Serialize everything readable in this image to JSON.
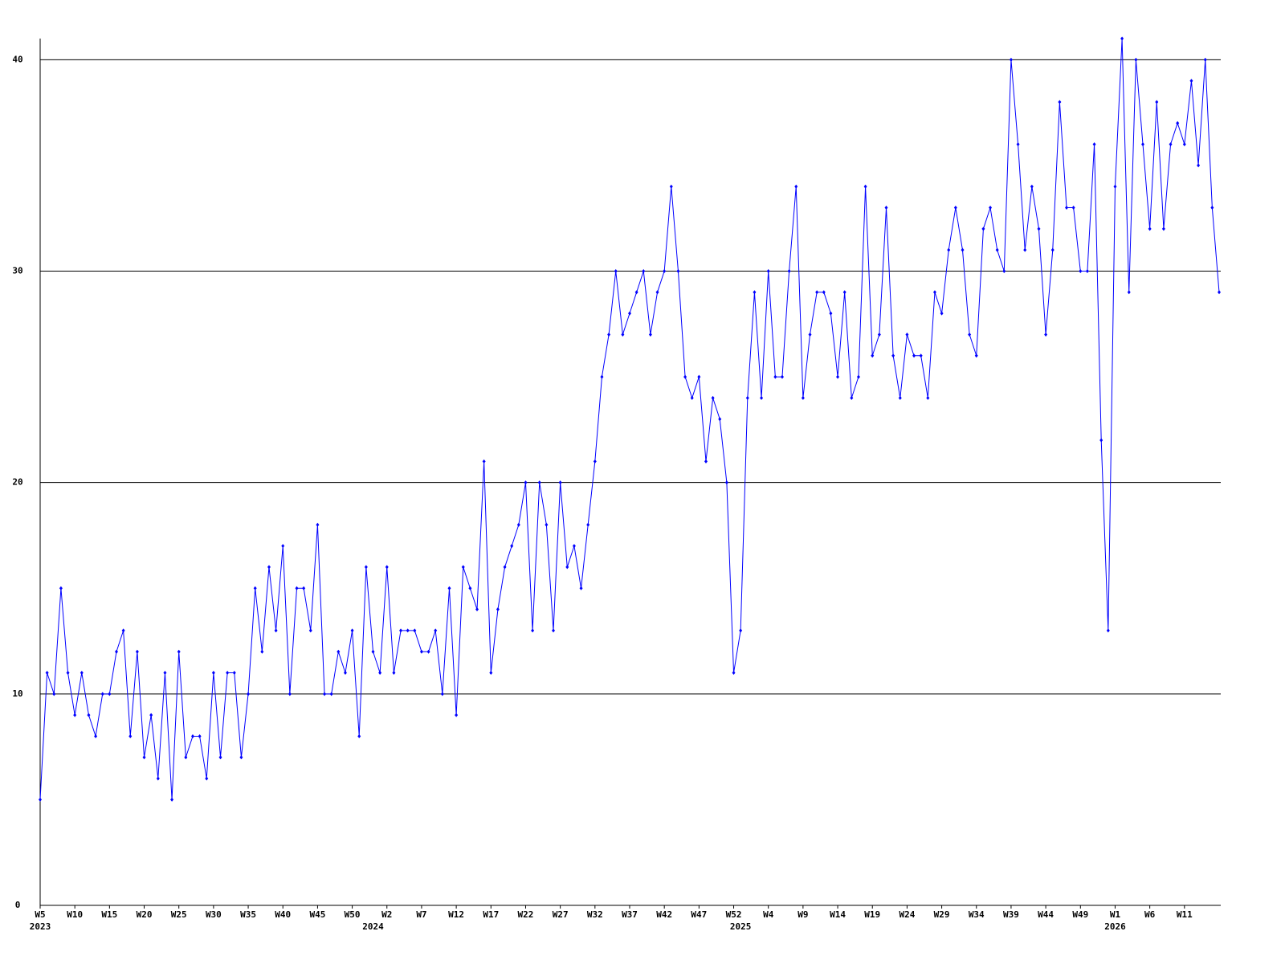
{
  "chart_data": {
    "type": "line",
    "categories": [
      "W5",
      null,
      null,
      null,
      null,
      "W10",
      null,
      null,
      null,
      null,
      "W15",
      null,
      null,
      null,
      null,
      "W20",
      null,
      null,
      null,
      null,
      "W25",
      null,
      null,
      null,
      null,
      "W30",
      null,
      null,
      null,
      null,
      "W35",
      null,
      null,
      null,
      null,
      "W40",
      null,
      null,
      null,
      null,
      "W45",
      null,
      null,
      null,
      null,
      "W50",
      null,
      null,
      null,
      null,
      "W2",
      null,
      null,
      null,
      null,
      "W7",
      null,
      null,
      null,
      null,
      "W12",
      null,
      null,
      null,
      null,
      "W17",
      null,
      null,
      null,
      null,
      "W22",
      null,
      null,
      null,
      null,
      "W27",
      null,
      null,
      null,
      null,
      "W32",
      null,
      null,
      null,
      null,
      "W37",
      null,
      null,
      null,
      null,
      "W42",
      null,
      null,
      null,
      null,
      "W47",
      null,
      null,
      null,
      null,
      "W52",
      null,
      null,
      null,
      null,
      "W4",
      null,
      null,
      null,
      null,
      "W9",
      null,
      null,
      null,
      null,
      "W14",
      null,
      null,
      null,
      null,
      "W19",
      null,
      null,
      null,
      null,
      "W24",
      null,
      null,
      null,
      null,
      "W29",
      null,
      null,
      null,
      null,
      "W34",
      null,
      null,
      null,
      null,
      "W39",
      null,
      null,
      null,
      null,
      "W44",
      null,
      null,
      null,
      null,
      "W49",
      null,
      null,
      null,
      null,
      "W1",
      null,
      null,
      null,
      null,
      "W6",
      null,
      null,
      null,
      null,
      "W11",
      null,
      null,
      null,
      null,
      null
    ],
    "category_years": [
      "2023",
      null,
      null,
      null,
      null,
      null,
      null,
      null,
      null,
      null,
      null,
      null,
      null,
      null,
      null,
      null,
      null,
      null,
      null,
      null,
      null,
      null,
      null,
      null,
      null,
      null,
      null,
      null,
      null,
      null,
      null,
      null,
      null,
      null,
      null,
      null,
      null,
      null,
      null,
      null,
      null,
      null,
      null,
      null,
      null,
      null,
      null,
      null,
      "2024",
      null,
      null,
      null,
      null,
      null,
      null,
      null,
      null,
      null,
      null,
      null,
      null,
      null,
      null,
      null,
      null,
      null,
      null,
      null,
      null,
      null,
      null,
      null,
      null,
      null,
      null,
      null,
      null,
      null,
      null,
      null,
      null,
      null,
      null,
      null,
      null,
      null,
      null,
      null,
      null,
      null,
      null,
      null,
      null,
      null,
      null,
      null,
      null,
      null,
      null,
      null,
      null,
      "2025",
      null,
      null,
      null,
      null,
      null,
      null,
      null,
      null,
      null,
      null,
      null,
      null,
      null,
      null,
      null,
      null,
      null,
      null,
      null,
      null,
      null,
      null,
      null,
      null,
      null,
      null,
      null,
      null,
      null,
      null,
      null,
      null,
      null,
      null,
      null,
      null,
      null,
      null,
      null,
      null,
      null,
      null,
      null,
      null,
      null,
      null,
      null,
      null,
      null,
      null,
      null,
      null,
      null,
      "2026",
      null,
      null,
      null,
      null,
      null,
      null,
      null,
      null,
      null,
      null,
      null,
      null,
      null,
      null,
      null
    ],
    "series": [
      {
        "color": "#0000ff",
        "values": [
          5,
          11,
          10,
          15,
          11,
          9,
          11,
          9,
          8,
          10,
          10,
          12,
          13,
          8,
          12,
          7,
          9,
          6,
          11,
          5,
          12,
          7,
          8,
          8,
          6,
          11,
          7,
          11,
          11,
          7,
          10,
          15,
          12,
          16,
          13,
          17,
          10,
          15,
          15,
          13,
          18,
          10,
          10,
          12,
          11,
          13,
          8,
          16,
          12,
          11,
          16,
          11,
          13,
          13,
          13,
          12,
          12,
          13,
          10,
          15,
          9,
          16,
          15,
          14,
          21,
          11,
          14,
          16,
          17,
          18,
          20,
          13,
          20,
          18,
          13,
          20,
          16,
          17,
          15,
          18,
          21,
          25,
          27,
          30,
          27,
          28,
          29,
          30,
          27,
          29,
          30,
          34,
          30,
          25,
          24,
          25,
          21,
          24,
          23,
          20,
          11,
          13,
          24,
          29,
          24,
          30,
          25,
          25,
          30,
          34,
          24,
          27,
          29,
          29,
          28,
          25,
          29,
          24,
          25,
          34,
          26,
          27,
          33,
          26,
          24,
          27,
          26,
          26,
          24,
          29,
          28,
          31,
          33,
          31,
          27,
          26,
          32,
          33,
          31,
          30,
          40,
          36,
          31,
          34,
          32,
          27,
          31,
          38,
          33,
          33,
          30,
          30,
          36,
          22,
          13,
          34,
          41,
          29,
          40,
          36,
          32,
          38,
          32,
          36,
          37,
          36,
          39,
          35,
          40,
          33,
          29
        ]
      }
    ],
    "ylim": [
      0,
      41
    ],
    "yticks": [
      0,
      10,
      20,
      30,
      40
    ],
    "grid": true
  }
}
